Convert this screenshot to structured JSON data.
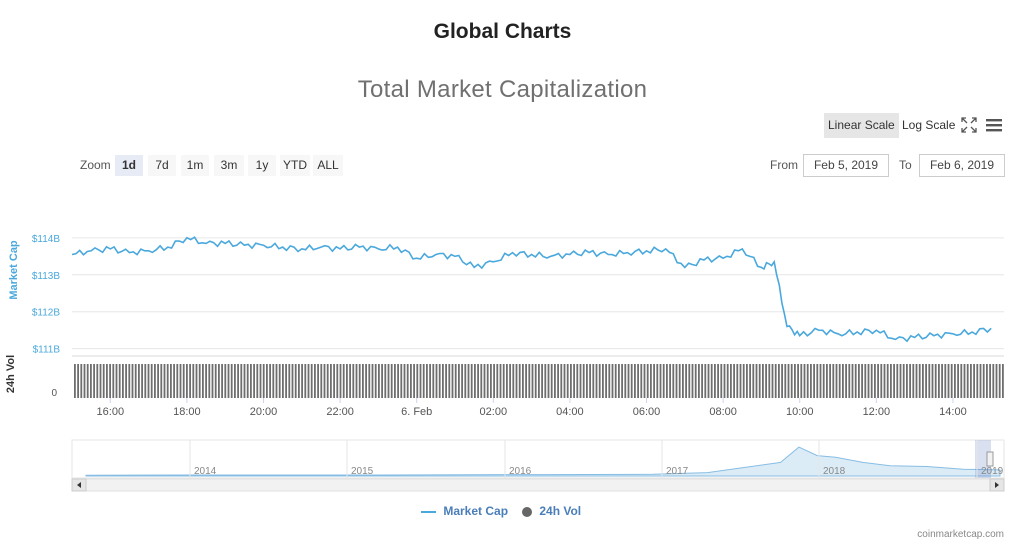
{
  "page": {
    "title": "Global Charts"
  },
  "toolbar": {
    "linear_label": "Linear Scale",
    "log_label": "Log Scale",
    "fullscreen_icon": "fullscreen-icon",
    "menu_icon": "hamburger-menu-icon"
  },
  "range_selector": {
    "zoom_label": "Zoom",
    "buttons": [
      "1d",
      "7d",
      "1m",
      "3m",
      "1y",
      "YTD",
      "ALL"
    ],
    "selected": "1d",
    "from_label": "From",
    "from_value": "Feb 5, 2019",
    "to_label": "To",
    "to_value": "Feb 6, 2019"
  },
  "chart_data": {
    "type": "line",
    "title": "Total Market Capitalization",
    "ylabel": "Market Cap",
    "y_ticks": [
      "$114B",
      "$113B",
      "$112B",
      "$111B"
    ],
    "ylim": [
      110.8,
      114.7
    ],
    "volume_label": "24h Vol",
    "volume_tick": "0",
    "x_ticks": [
      "16:00",
      "18:00",
      "20:00",
      "22:00",
      "6. Feb",
      "02:00",
      "04:00",
      "06:00",
      "08:00",
      "10:00",
      "12:00",
      "14:00"
    ],
    "series": [
      {
        "name": "Market Cap",
        "color": "#4aa8dc",
        "points": [
          [
            "15:00",
            113.55
          ],
          [
            "15:30",
            113.65
          ],
          [
            "16:00",
            113.7
          ],
          [
            "16:30",
            113.6
          ],
          [
            "17:00",
            113.65
          ],
          [
            "17:30",
            113.75
          ],
          [
            "18:00",
            114.0
          ],
          [
            "18:30",
            113.85
          ],
          [
            "19:00",
            113.85
          ],
          [
            "19:30",
            113.8
          ],
          [
            "20:00",
            113.8
          ],
          [
            "20:30",
            113.75
          ],
          [
            "21:00",
            113.7
          ],
          [
            "21:30",
            113.75
          ],
          [
            "22:00",
            113.7
          ],
          [
            "22:30",
            113.75
          ],
          [
            "23:00",
            113.7
          ],
          [
            "23:30",
            113.75
          ],
          [
            "00:00",
            113.45
          ],
          [
            "00:30",
            113.55
          ],
          [
            "01:00",
            113.5
          ],
          [
            "01:30",
            113.2
          ],
          [
            "02:00",
            113.35
          ],
          [
            "02:30",
            113.6
          ],
          [
            "03:00",
            113.55
          ],
          [
            "03:30",
            113.5
          ],
          [
            "04:00",
            113.55
          ],
          [
            "04:30",
            113.6
          ],
          [
            "05:00",
            113.55
          ],
          [
            "05:30",
            113.6
          ],
          [
            "06:00",
            113.65
          ],
          [
            "06:30",
            113.7
          ],
          [
            "07:00",
            113.2
          ],
          [
            "07:30",
            113.4
          ],
          [
            "08:00",
            113.45
          ],
          [
            "08:30",
            113.7
          ],
          [
            "09:00",
            113.2
          ],
          [
            "09:20",
            113.35
          ],
          [
            "09:40",
            111.6
          ],
          [
            "10:00",
            111.35
          ],
          [
            "10:30",
            111.5
          ],
          [
            "11:00",
            111.4
          ],
          [
            "11:30",
            111.45
          ],
          [
            "12:00",
            111.5
          ],
          [
            "12:30",
            111.25
          ],
          [
            "13:00",
            111.3
          ],
          [
            "13:30",
            111.35
          ],
          [
            "14:00",
            111.4
          ],
          [
            "14:30",
            111.45
          ],
          [
            "15:00",
            111.55
          ]
        ]
      },
      {
        "name": "24h Vol",
        "color": "#666666"
      }
    ],
    "navigator": {
      "labels": [
        "2014",
        "2015",
        "2016",
        "2017",
        "2018",
        "2019"
      ]
    },
    "legend_position": "bottom-center",
    "grid": true
  },
  "credits": "coinmarketcap.com"
}
